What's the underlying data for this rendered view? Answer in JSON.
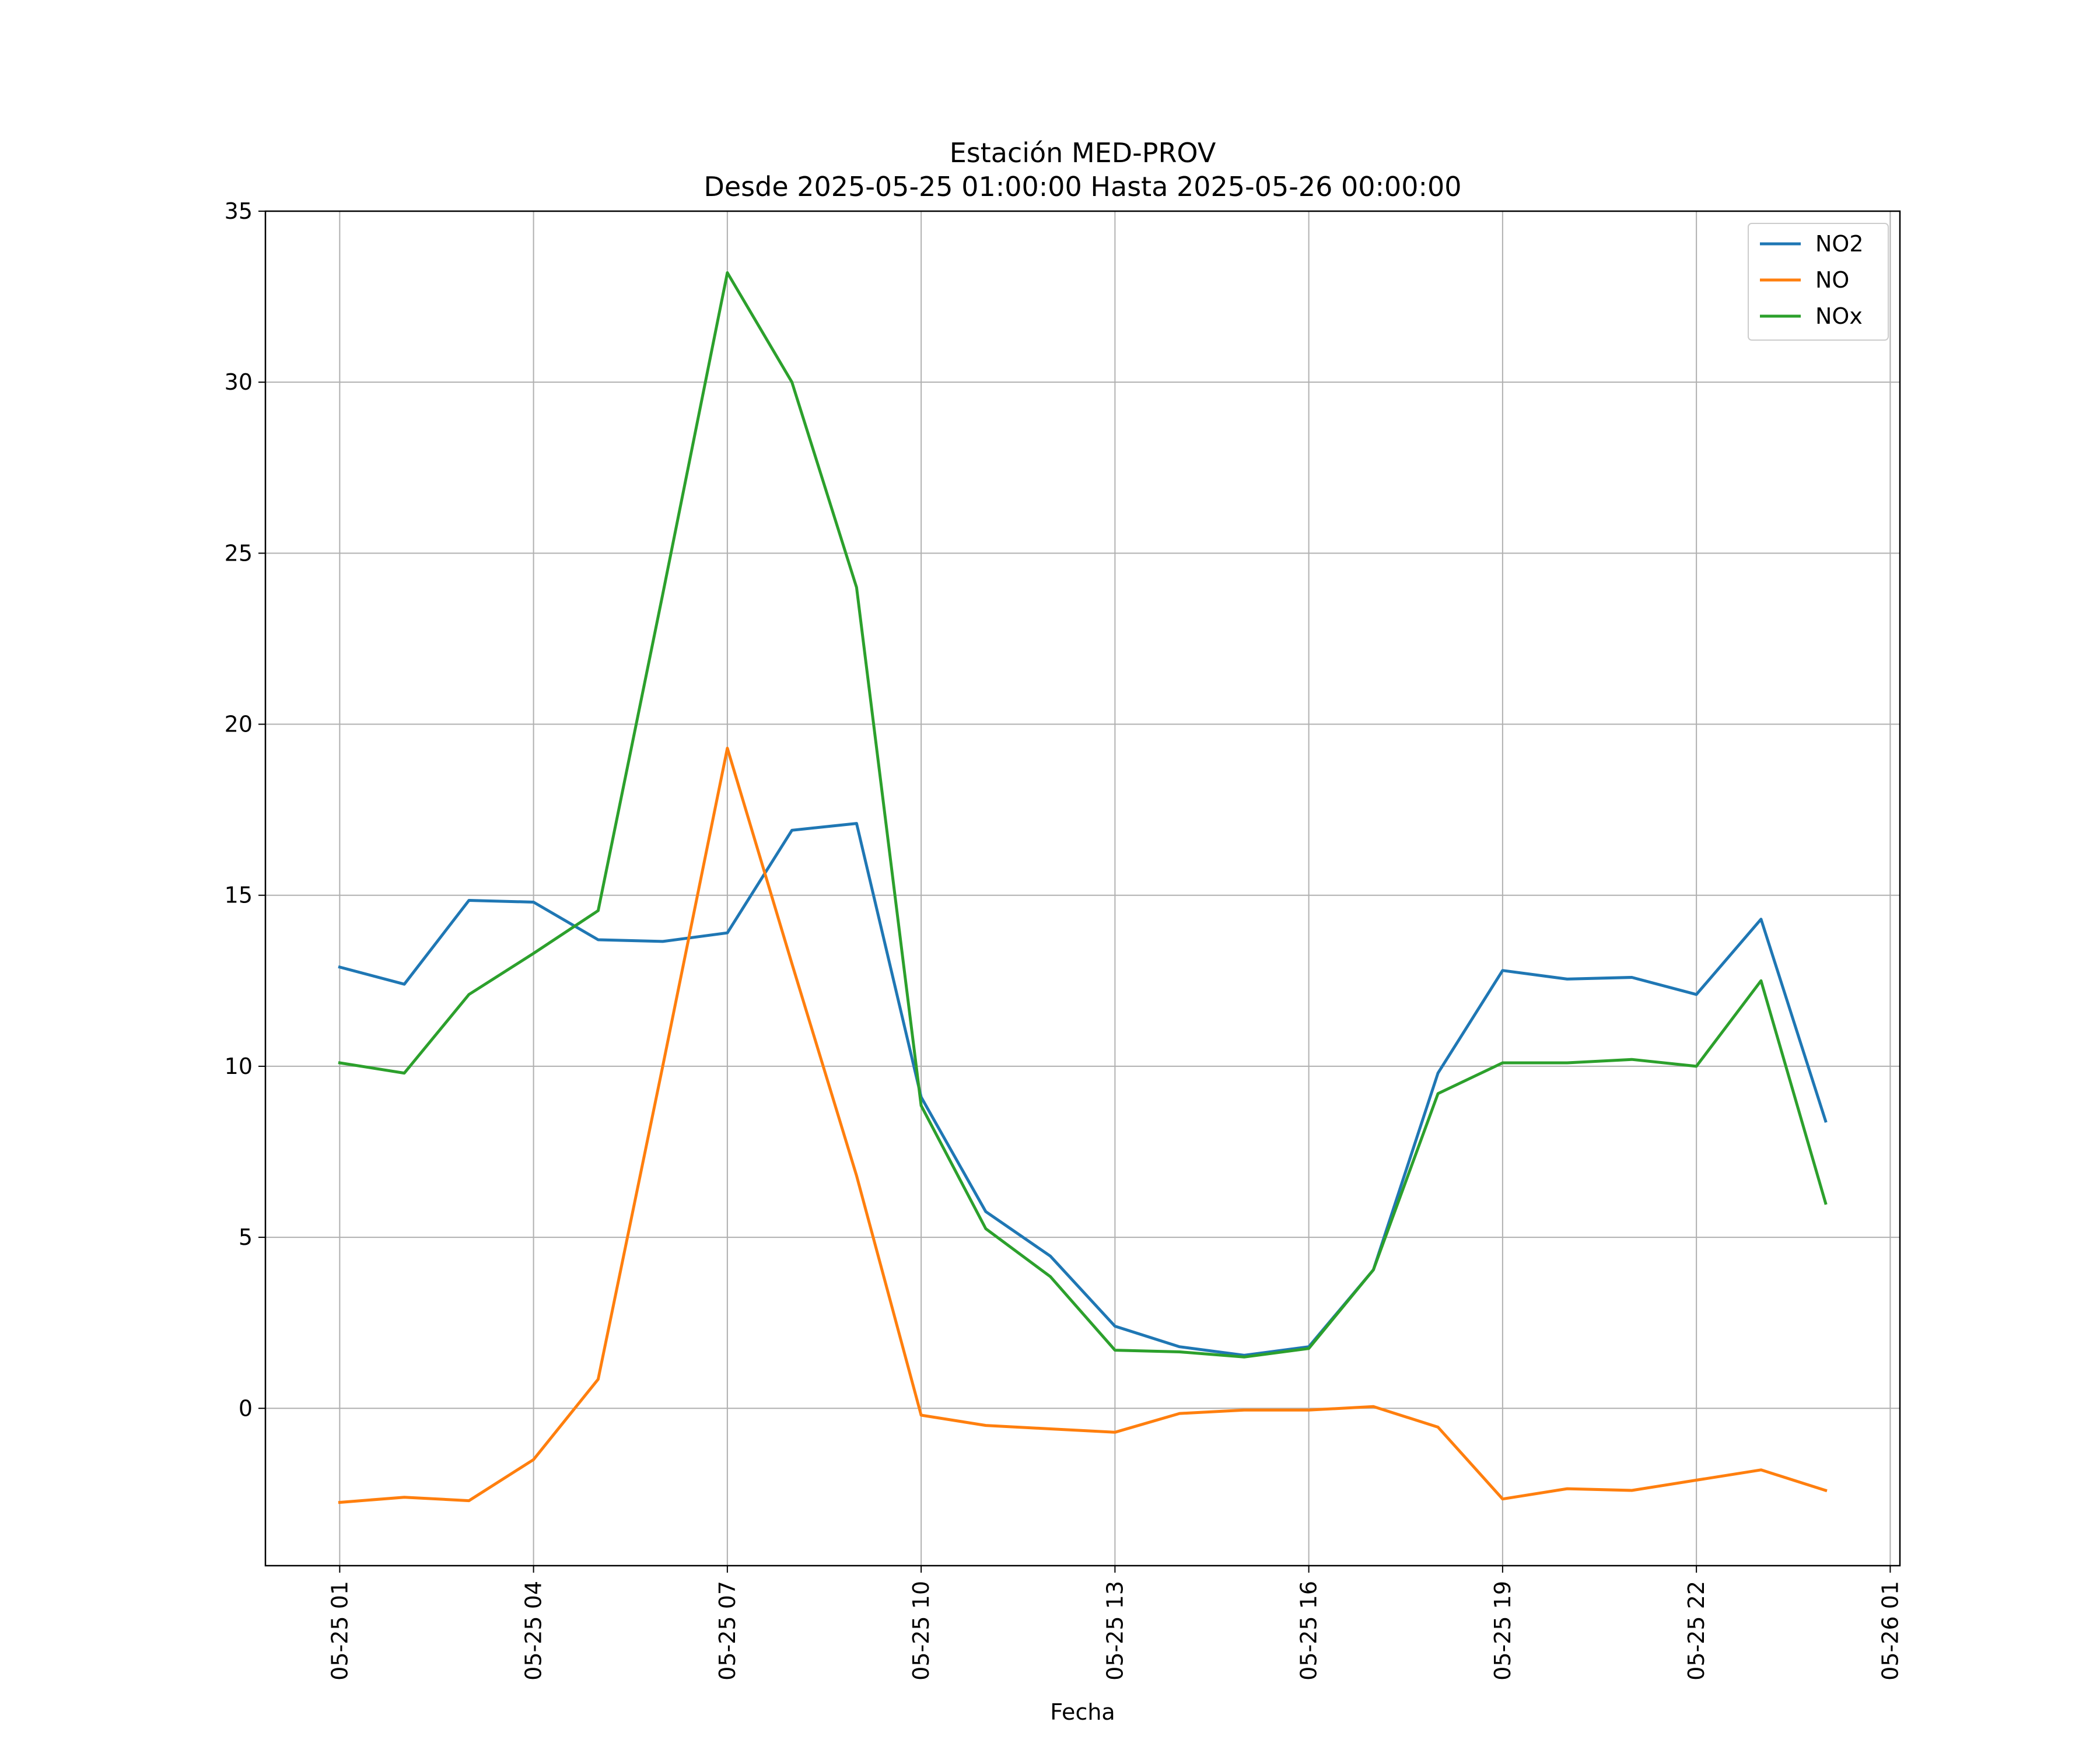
{
  "chart_data": {
    "type": "line",
    "title": "Estación MED-PROV",
    "subtitle": "Desde 2025-05-25 01:00:00 Hasta 2025-05-26 00:00:00",
    "xlabel": "Fecha",
    "ylabel": "",
    "x": [
      "05-25 01",
      "05-25 02",
      "05-25 03",
      "05-25 04",
      "05-25 05",
      "05-25 06",
      "05-25 07",
      "05-25 08",
      "05-25 09",
      "05-25 10",
      "05-25 11",
      "05-25 12",
      "05-25 13",
      "05-25 14",
      "05-25 15",
      "05-25 16",
      "05-25 17",
      "05-25 18",
      "05-25 19",
      "05-25 20",
      "05-25 21",
      "05-25 22",
      "05-25 23",
      "05-26 00"
    ],
    "x_ticks": [
      "05-25 01",
      "05-25 04",
      "05-25 07",
      "05-25 10",
      "05-25 13",
      "05-25 16",
      "05-25 19",
      "05-25 22",
      "05-26 01"
    ],
    "xlim_hours": [
      -1.15,
      24.15
    ],
    "ylim": [
      -4.6,
      35
    ],
    "y_ticks": [
      0,
      5,
      10,
      15,
      20,
      25,
      30,
      35
    ],
    "grid": true,
    "legend_position": "top-right",
    "series": [
      {
        "name": "NO2",
        "color": "#1f77b4",
        "values": [
          12.9,
          12.4,
          14.85,
          14.8,
          13.7,
          13.65,
          13.9,
          16.9,
          17.1,
          9.1,
          5.75,
          4.45,
          2.4,
          1.8,
          1.55,
          1.8,
          4.05,
          9.8,
          12.8,
          12.55,
          12.6,
          12.1,
          14.3,
          8.4
        ]
      },
      {
        "name": "NO",
        "color": "#ff7f0e",
        "values": [
          -2.75,
          -2.6,
          -2.7,
          -1.5,
          0.85,
          10.0,
          19.3,
          13.0,
          6.8,
          -0.2,
          -0.5,
          -0.6,
          -0.7,
          -0.15,
          -0.05,
          -0.05,
          0.05,
          -0.55,
          -2.65,
          -2.35,
          -2.4,
          -2.1,
          -1.8,
          -2.4
        ]
      },
      {
        "name": "NOx",
        "color": "#2ca02c",
        "values": [
          10.1,
          9.8,
          12.1,
          13.3,
          14.55,
          23.8,
          33.2,
          30.0,
          24.0,
          8.85,
          5.25,
          3.85,
          1.7,
          1.65,
          1.5,
          1.75,
          4.05,
          9.2,
          10.1,
          10.1,
          10.2,
          10.0,
          12.5,
          6.0
        ]
      }
    ]
  }
}
